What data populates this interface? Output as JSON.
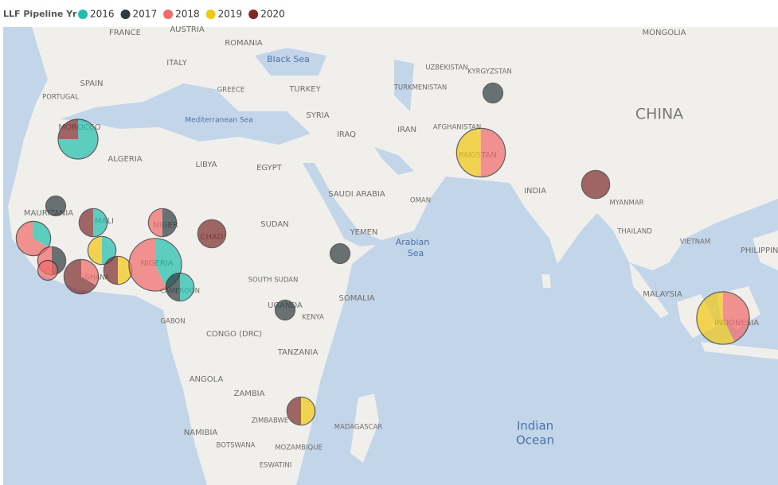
{
  "legend": {
    "title": "LLF Pipeline Yr",
    "items": [
      {
        "name": "2016",
        "color": "#1fbfae"
      },
      {
        "name": "2017",
        "color": "#2f3b3e"
      },
      {
        "name": "2018",
        "color": "#f06a6a"
      },
      {
        "name": "2019",
        "color": "#f2c811"
      },
      {
        "name": "2020",
        "color": "#7c2b2b"
      }
    ]
  },
  "labels": [
    "FRANCE",
    "AUSTRIA",
    "ROMANIA",
    "MONGOLIA",
    "Black Sea",
    "ITALY",
    "UZBEKISTAN",
    "KYRGYZSTAN",
    "SPAIN",
    "TURKMENISTAN",
    "GREECE",
    "TURKEY",
    "PORTUGAL",
    "CHINA",
    "Mediterranean Sea",
    "SYRIA",
    "MOROCCO",
    "IRAQ",
    "IRAN",
    "AFGHANISTAN",
    "PAKISTAN",
    "ALGERIA",
    "LIBYA",
    "EGYPT",
    "SAUDI ARABIA",
    "INDIA",
    "OMAN",
    "MYANMAR",
    "MAURITANIA",
    "MALI",
    "NIGER",
    "CHAD",
    "SUDAN",
    "YEMEN",
    "THAILAND",
    "VIETNAM",
    "Arabian",
    "Sea",
    "PHILIPPINES",
    "NIGERIA",
    "SOUTH SUDAN",
    "SOMALIA",
    "MALAYSIA",
    "UGANDA",
    "KENYA",
    "GABON",
    "INDONESIA",
    "CONGO (DRC)",
    "TANZANIA",
    "ANGOLA",
    "ZAMBIA",
    "MADAGASCAR",
    "Indian",
    "Ocean",
    "NAMIBIA",
    "ZIMBABWE",
    "BOTSWANA",
    "MOZAMBIQUE",
    "ESWATINI",
    "GHANA",
    "CAMEROON"
  ],
  "pies": [
    [
      3,
      0,
      0,
      0,
      1
    ],
    [
      0,
      1,
      0,
      0,
      0
    ],
    [
      1,
      0,
      0,
      0,
      1
    ],
    [
      0,
      1,
      1,
      0,
      0
    ],
    [
      0,
      0,
      0,
      0,
      2
    ],
    [
      1,
      0,
      2,
      0,
      0
    ],
    [
      0,
      1,
      1,
      0,
      0
    ],
    [
      0,
      0,
      1,
      0,
      0
    ],
    [
      1,
      0,
      0,
      1,
      0
    ],
    [
      0,
      0,
      1,
      0,
      2
    ],
    [
      0,
      0,
      0,
      1,
      1
    ],
    [
      3,
      0,
      4,
      0,
      0
    ],
    [
      1,
      1,
      0,
      0,
      0
    ],
    [
      0,
      1,
      0,
      0,
      0
    ],
    [
      0,
      1,
      0,
      0,
      0
    ],
    [
      0,
      0,
      0,
      1,
      1
    ],
    [
      0,
      1,
      0,
      0,
      0
    ],
    [
      0,
      0,
      3,
      3,
      0
    ],
    [
      0,
      0,
      0,
      0,
      2
    ],
    [
      0,
      0,
      3,
      4,
      0
    ]
  ]
}
